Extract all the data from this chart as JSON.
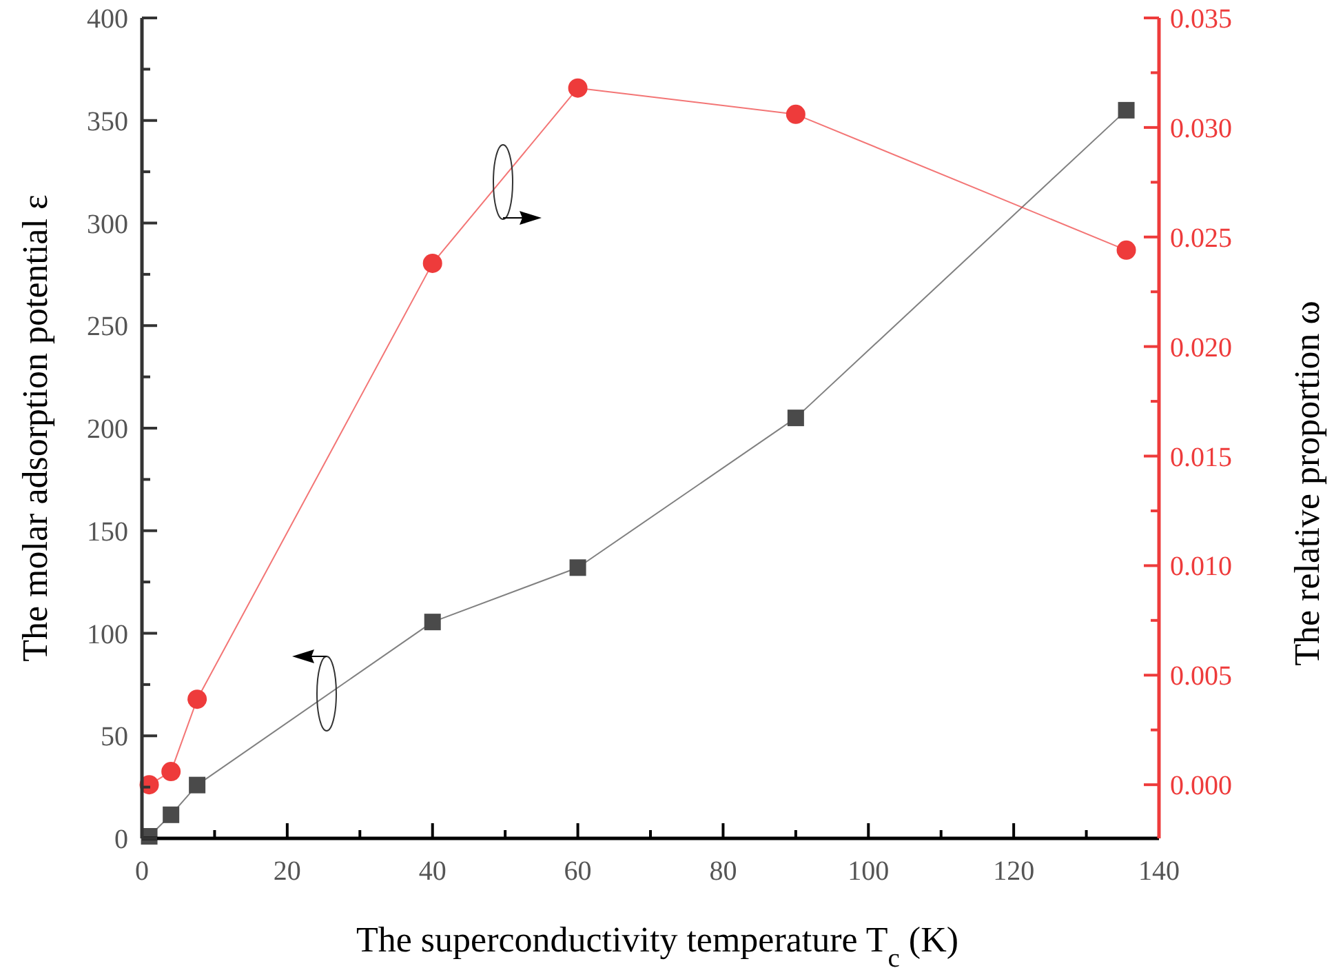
{
  "chart_data": {
    "type": "line",
    "xlabel": "The superconductivity temperature T$_{c}$ (K)",
    "ylabel": "The molar adsorption potential ε",
    "y2label": "The relative proportion ω",
    "x": [
      1,
      4,
      7.6,
      40,
      60,
      90,
      135.5
    ],
    "xlim": [
      0,
      140
    ],
    "xticks": [
      0,
      {
        "value": 10,
        "label": null
      },
      20,
      {
        "value": 30,
        "label": null
      },
      40,
      {
        "value": 50,
        "label": null
      },
      60,
      {
        "value": 70,
        "label": null
      },
      80,
      {
        "value": 90,
        "label": null
      },
      100,
      {
        "value": 110,
        "label": null
      },
      120,
      {
        "value": 130,
        "label": null
      },
      140
    ],
    "ylim": [
      0,
      400
    ],
    "yticks": [
      0,
      {
        "value": 25,
        "label": null
      },
      50,
      {
        "value": 75,
        "label": null
      },
      100,
      {
        "value": 125,
        "label": null
      },
      150,
      {
        "value": 175,
        "label": null
      },
      200,
      {
        "value": 225,
        "label": null
      },
      250,
      {
        "value": 275,
        "label": null
      },
      300,
      {
        "value": 325,
        "label": null
      },
      350,
      {
        "value": 375,
        "label": null
      },
      400
    ],
    "y2lim": [
      -0.00245,
      0.035
    ],
    "y2ticks": [
      {
        "value": 0,
        "label": "0.000"
      },
      {
        "value": 0.0025,
        "label": null
      },
      {
        "value": 0.005,
        "label": "0.005"
      },
      {
        "value": 0.0075,
        "label": null
      },
      {
        "value": 0.01,
        "label": "0.010"
      },
      {
        "value": 0.0125,
        "label": null
      },
      {
        "value": 0.015,
        "label": "0.015"
      },
      {
        "value": 0.0175,
        "label": null
      },
      {
        "value": 0.02,
        "label": "0.020"
      },
      {
        "value": 0.0225,
        "label": null
      },
      {
        "value": 0.025,
        "label": "0.025"
      },
      {
        "value": 0.0275,
        "label": null
      },
      {
        "value": 0.03,
        "label": "0.030"
      },
      {
        "value": 0.0325,
        "label": null
      },
      {
        "value": 0.035,
        "label": "0.035"
      }
    ],
    "grid": false,
    "line_style": "solid",
    "series": [
      {
        "color": "#4a4a4a",
        "marker": "square",
        "values": [
          1,
          11.5,
          26,
          105.5,
          132,
          205,
          355
        ]
      },
      {
        "color": "#ee3b3b",
        "marker": "circle",
        "axis": "y2",
        "values": [
          0,
          0.0006,
          0.0039,
          0.0238,
          0.0318,
          0.0306,
          0.0244
        ]
      }
    ]
  }
}
